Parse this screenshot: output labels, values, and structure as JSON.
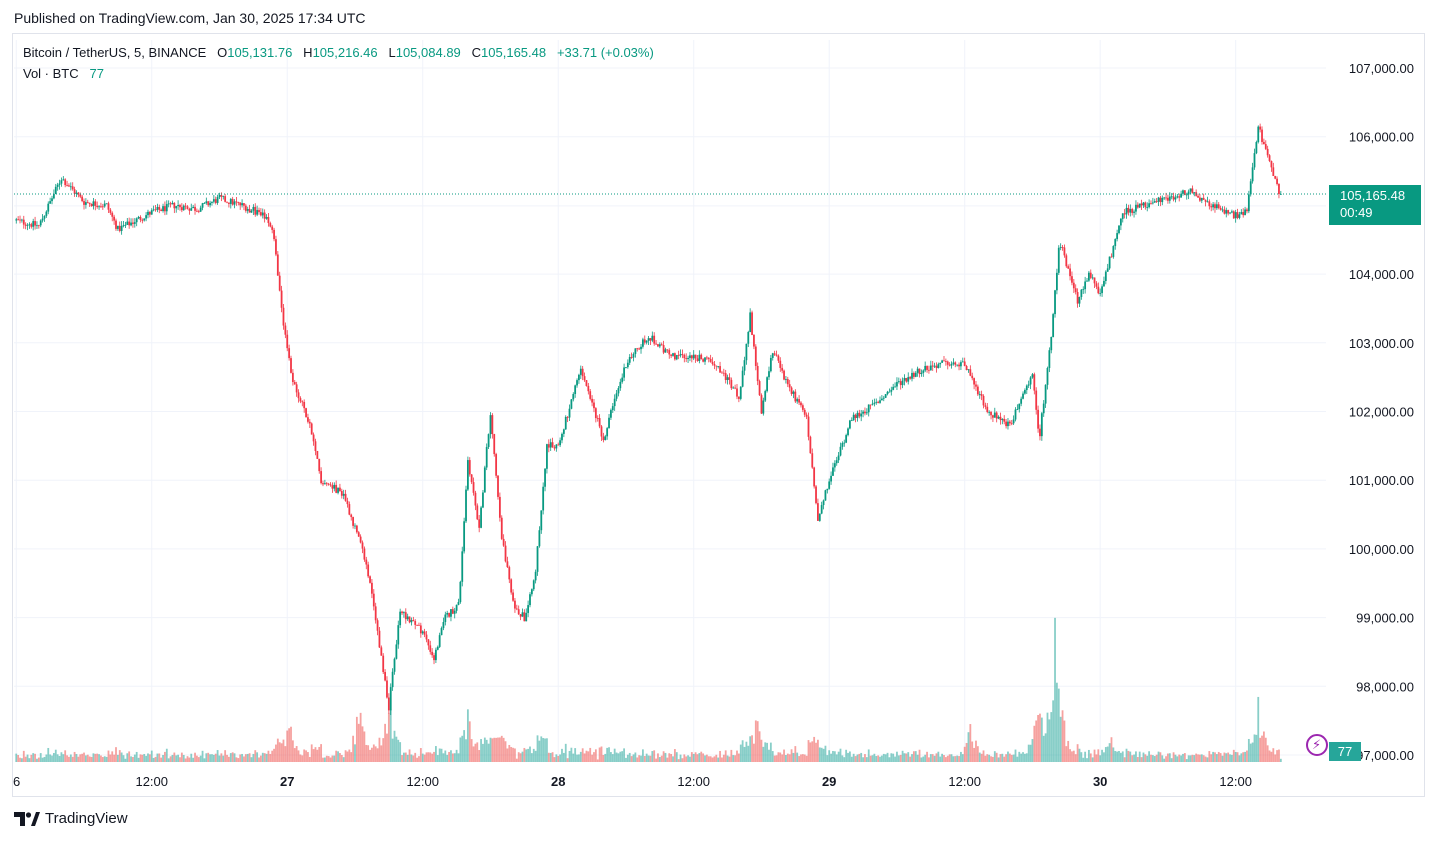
{
  "header": {
    "published": "Published on TradingView.com, Jan 30, 2025 17:34 UTC"
  },
  "legend": {
    "symbol": "Bitcoin / TetherUS, 5, BINANCE",
    "o_label": "O",
    "o_value": "105,131.76",
    "h_label": "H",
    "h_value": "105,216.46",
    "l_label": "L",
    "l_value": "105,084.89",
    "c_label": "C",
    "c_value": "105,165.48",
    "change": "+33.71 (+0.03%)",
    "vol_label": "Vol · BTC",
    "vol_value": "77"
  },
  "price_tag": {
    "price": "105,165.48",
    "countdown": "00:49"
  },
  "vol_tag": "77",
  "footer": {
    "brand": "TradingView"
  },
  "colors": {
    "up": "#089981",
    "down": "#f23645",
    "vol_up": "#26a69a",
    "vol_down": "#ef5350",
    "grid": "#f0f3fa"
  },
  "chart_data": {
    "type": "candlestick",
    "symbol": "Bitcoin / TetherUS",
    "interval": "5",
    "exchange": "BINANCE",
    "last_price": 105165.48,
    "ylim": [
      97000,
      107400
    ],
    "y_ticks": [
      "107,000.00",
      "106,000.00",
      "104,000.00",
      "103,000.00",
      "102,000.00",
      "101,000.00",
      "100,000.00",
      "99,000.00",
      "98,000.00",
      "97,000.00"
    ],
    "y_tick_values": [
      107000,
      106000,
      104000,
      103000,
      102000,
      101000,
      100000,
      99000,
      98000,
      97000
    ],
    "x_ticks": [
      "6",
      "12:00",
      "27",
      "12:00",
      "28",
      "12:00",
      "29",
      "12:00",
      "30",
      "12:00"
    ],
    "x_tick_hours": [
      0,
      6,
      12,
      18,
      24,
      30,
      36,
      42,
      48,
      54
    ],
    "x_range_hours": [
      -0.1,
      58.0
    ],
    "price_path": [
      [
        0.0,
        104780
      ],
      [
        1.0,
        104700
      ],
      [
        2.0,
        105400
      ],
      [
        3.0,
        105050
      ],
      [
        4.0,
        105000
      ],
      [
        4.5,
        104650
      ],
      [
        6.0,
        104900
      ],
      [
        7.0,
        105000
      ],
      [
        8.0,
        104950
      ],
      [
        9.0,
        105100
      ],
      [
        10.0,
        105000
      ],
      [
        11.0,
        104850
      ],
      [
        11.4,
        104550
      ],
      [
        11.8,
        103300
      ],
      [
        12.2,
        102500
      ],
      [
        13.0,
        101800
      ],
      [
        13.5,
        101000
      ],
      [
        14.5,
        100800
      ],
      [
        15.5,
        99800
      ],
      [
        16.0,
        98800
      ],
      [
        16.5,
        97700
      ],
      [
        17.0,
        99100
      ],
      [
        18.0,
        98800
      ],
      [
        18.5,
        98400
      ],
      [
        19.0,
        99000
      ],
      [
        19.6,
        99200
      ],
      [
        20.0,
        101300
      ],
      [
        20.5,
        100300
      ],
      [
        21.0,
        102000
      ],
      [
        21.5,
        100200
      ],
      [
        22.0,
        99200
      ],
      [
        22.5,
        99000
      ],
      [
        23.0,
        99700
      ],
      [
        23.5,
        101500
      ],
      [
        24.0,
        101500
      ],
      [
        25.0,
        102600
      ],
      [
        26.0,
        101600
      ],
      [
        27.0,
        102700
      ],
      [
        28.0,
        103100
      ],
      [
        29.0,
        102800
      ],
      [
        30.0,
        102800
      ],
      [
        31.0,
        102700
      ],
      [
        32.0,
        102200
      ],
      [
        32.5,
        103400
      ],
      [
        33.0,
        102000
      ],
      [
        33.5,
        102900
      ],
      [
        34.0,
        102500
      ],
      [
        35.0,
        101900
      ],
      [
        35.5,
        100400
      ],
      [
        36.0,
        101000
      ],
      [
        37.0,
        101900
      ],
      [
        38.0,
        102100
      ],
      [
        39.0,
        102400
      ],
      [
        40.0,
        102600
      ],
      [
        41.0,
        102700
      ],
      [
        42.0,
        102700
      ],
      [
        43.0,
        102000
      ],
      [
        44.0,
        101800
      ],
      [
        45.0,
        102500
      ],
      [
        45.3,
        101600
      ],
      [
        45.8,
        103000
      ],
      [
        46.2,
        104500
      ],
      [
        47.0,
        103600
      ],
      [
        47.5,
        104000
      ],
      [
        48.0,
        103700
      ],
      [
        49.0,
        104900
      ],
      [
        50.0,
        105000
      ],
      [
        51.0,
        105100
      ],
      [
        52.0,
        105200
      ],
      [
        53.0,
        105000
      ],
      [
        54.0,
        104850
      ],
      [
        54.5,
        104900
      ],
      [
        55.0,
        106150
      ],
      [
        55.5,
        105600
      ],
      [
        56.0,
        105100
      ]
    ],
    "volume_spikes": [
      [
        11.4,
        0.15
      ],
      [
        12.1,
        0.28
      ],
      [
        15.2,
        0.45
      ],
      [
        16.5,
        0.55
      ],
      [
        20.0,
        0.35
      ],
      [
        21.5,
        0.25
      ],
      [
        32.8,
        0.38
      ],
      [
        35.6,
        0.14
      ],
      [
        42.3,
        0.28
      ],
      [
        45.3,
        0.44
      ],
      [
        46.0,
        0.95
      ],
      [
        48.5,
        0.18
      ],
      [
        55.0,
        0.42
      ]
    ]
  }
}
